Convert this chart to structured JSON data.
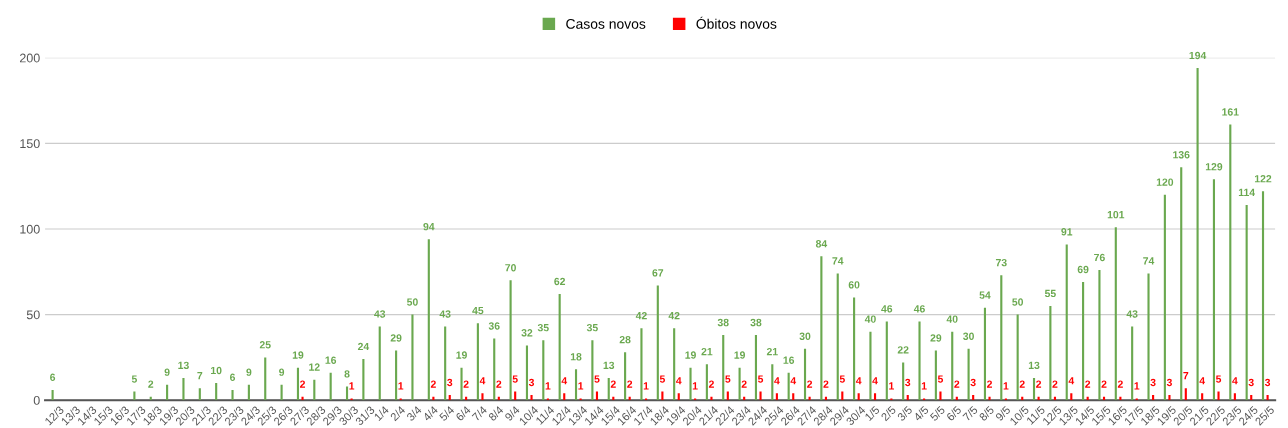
{
  "chart_data": {
    "type": "bar",
    "categories": [
      "12/3",
      "13/3",
      "14/3",
      "15/3",
      "16/3",
      "17/3",
      "18/3",
      "19/3",
      "20/3",
      "21/3",
      "22/3",
      "23/3",
      "24/3",
      "25/3",
      "26/3",
      "27/3",
      "28/3",
      "29/3",
      "30/3",
      "31/3",
      "1/4",
      "2/4",
      "3/4",
      "4/4",
      "5/4",
      "6/4",
      "7/4",
      "8/4",
      "9/4",
      "10/4",
      "11/4",
      "12/4",
      "13/4",
      "14/4",
      "15/4",
      "16/4",
      "17/4",
      "18/4",
      "19/4",
      "20/4",
      "21/4",
      "22/4",
      "23/4",
      "24/4",
      "25/4",
      "26/4",
      "27/4",
      "28/4",
      "29/4",
      "30/4",
      "1/5",
      "2/5",
      "3/5",
      "4/5",
      "5/5",
      "6/5",
      "7/5",
      "8/5",
      "9/5",
      "10/5",
      "11/5",
      "12/5",
      "13/5",
      "14/5",
      "15/5",
      "16/5",
      "17/5",
      "18/5",
      "19/5",
      "20/5",
      "21/5",
      "22/5",
      "23/5",
      "24/5",
      "25/5"
    ],
    "series": [
      {
        "name": "Casos novos",
        "color": "#6aa84f",
        "values": [
          6,
          null,
          null,
          null,
          null,
          5,
          2,
          9,
          13,
          7,
          10,
          6,
          9,
          25,
          9,
          19,
          12,
          16,
          8,
          24,
          43,
          29,
          50,
          94,
          43,
          19,
          45,
          36,
          70,
          32,
          35,
          62,
          18,
          35,
          13,
          28,
          42,
          67,
          42,
          19,
          21,
          38,
          19,
          38,
          21,
          16,
          30,
          84,
          74,
          60,
          40,
          46,
          22,
          46,
          29,
          40,
          30,
          54,
          73,
          50,
          13,
          55,
          91,
          69,
          76,
          101,
          43,
          74,
          120,
          136,
          194,
          129,
          161,
          114,
          122
        ]
      },
      {
        "name": "Óbitos novos",
        "color": "#ff0000",
        "values": [
          null,
          null,
          null,
          null,
          null,
          null,
          null,
          null,
          null,
          null,
          null,
          null,
          null,
          null,
          null,
          2,
          null,
          null,
          1,
          null,
          null,
          1,
          null,
          2,
          3,
          2,
          4,
          2,
          5,
          3,
          1,
          4,
          1,
          5,
          2,
          2,
          1,
          5,
          4,
          1,
          2,
          5,
          2,
          5,
          4,
          4,
          2,
          2,
          5,
          4,
          4,
          1,
          3,
          1,
          5,
          2,
          3,
          2,
          1,
          2,
          2,
          2,
          4,
          2,
          2,
          2,
          1,
          3,
          3,
          7,
          4,
          5,
          4,
          3,
          3
        ]
      }
    ],
    "ylim": [
      0,
      200
    ],
    "yticks": [
      0,
      50,
      100,
      150,
      200
    ],
    "grid": "y",
    "legend": "top",
    "data_labels": true
  }
}
